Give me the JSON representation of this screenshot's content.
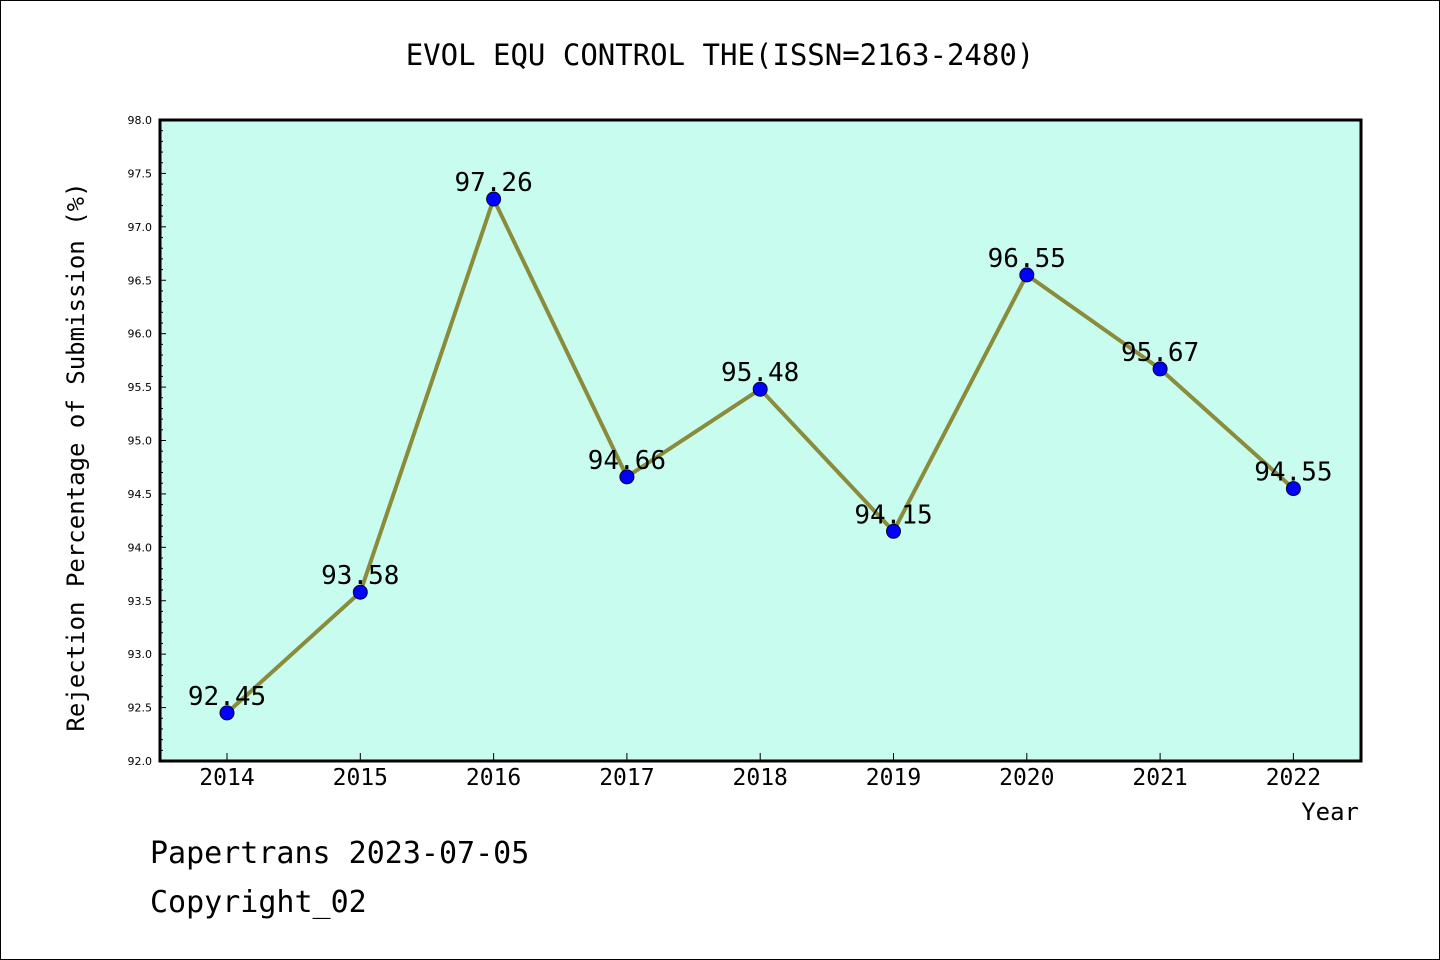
{
  "colors": {
    "plot_background": "#c8fcee",
    "line": "#8b8b3c",
    "marker": "#0000ff",
    "frame": "#000000"
  },
  "chart_data": {
    "type": "line",
    "title": "EVOL EQU CONTROL THE(ISSN=2163-2480)",
    "xlabel": "Year",
    "ylabel": "Rejection Percentage of Submission (%)",
    "categories": [
      "2014",
      "2015",
      "2016",
      "2017",
      "2018",
      "2019",
      "2020",
      "2021",
      "2022"
    ],
    "series": [
      {
        "values": [
          92.45,
          93.58,
          97.26,
          94.66,
          95.48,
          94.15,
          96.55,
          95.67,
          94.55
        ]
      }
    ],
    "data_labels": [
      "92.45",
      "93.58",
      "97.26",
      "94.66",
      "95.48",
      "94.15",
      "96.55",
      "95.67",
      "94.55"
    ],
    "ylim": [
      92.0,
      98.0
    ],
    "yticks": [
      "92.0",
      "92.5",
      "93.0",
      "93.5",
      "94.0",
      "94.5",
      "95.0",
      "95.5",
      "96.0",
      "96.5",
      "97.0",
      "97.5",
      "98.0"
    ],
    "grid": false,
    "legend": "none"
  },
  "footer": {
    "line1": "Papertrans 2023-07-05",
    "line2": "Copyright_02"
  }
}
